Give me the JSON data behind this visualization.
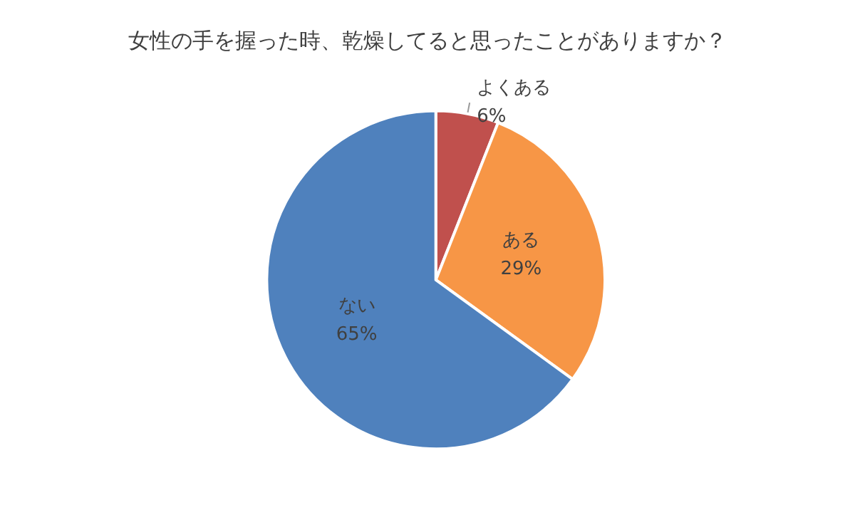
{
  "chart_data": {
    "type": "pie",
    "title": "女性の手を握った時、乾燥してると思ったことがありますか？",
    "categories": [
      "よくある",
      "ある",
      "ない"
    ],
    "values": [
      6,
      29,
      65
    ],
    "colors": [
      "#c0504d",
      "#f79646",
      "#4f81bd"
    ],
    "value_labels": [
      "6%",
      "29%",
      "65%"
    ],
    "legend": false
  }
}
